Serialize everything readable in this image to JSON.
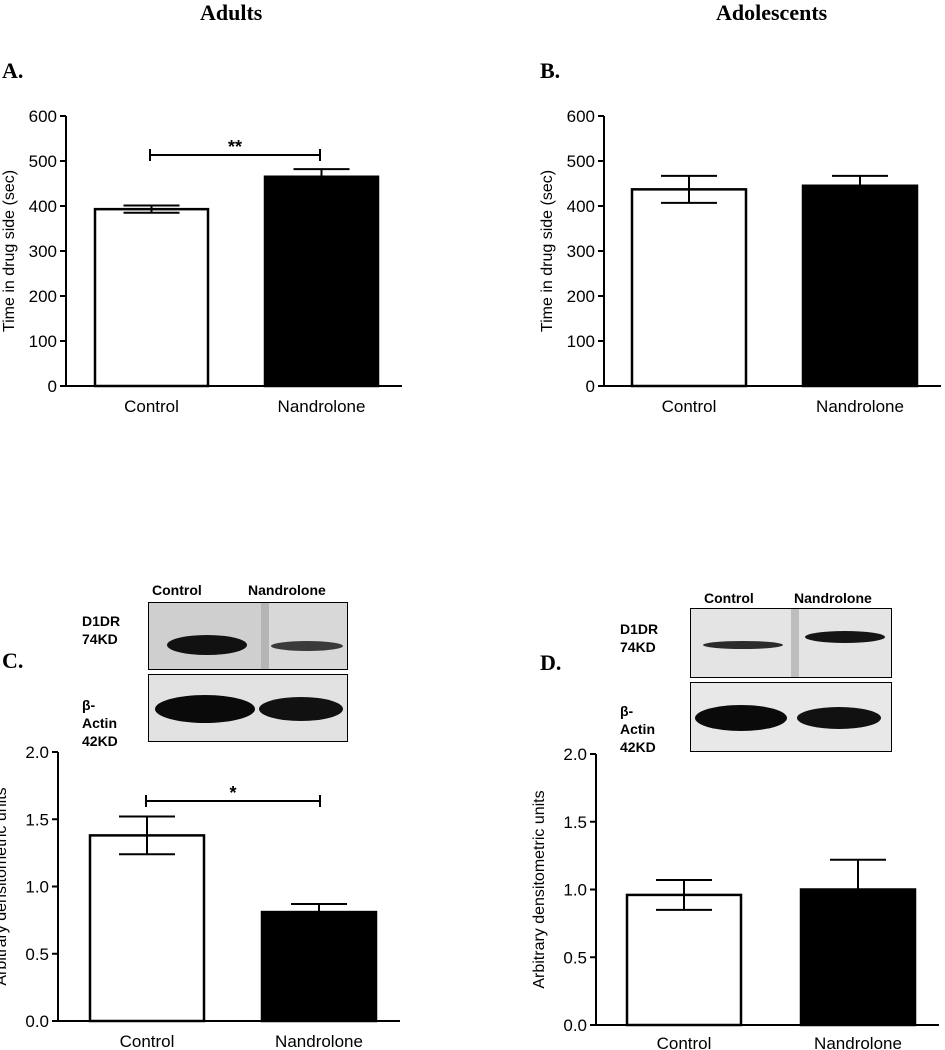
{
  "columns": {
    "left": "Adults",
    "right": "Adolescents"
  },
  "panels": [
    {
      "letter": "A.",
      "ylabel": "Time in drug side (sec)",
      "yticks": [
        "0",
        "100",
        "200",
        "300",
        "400",
        "500",
        "600"
      ]
    },
    {
      "letter": "B.",
      "ylabel": "Time in drug side (sec)",
      "yticks": [
        "0",
        "100",
        "200",
        "300",
        "400",
        "500",
        "600"
      ]
    },
    {
      "letter": "C.",
      "ylabel": "Arbitrary densitometric units",
      "yticks": [
        "0.0",
        "0.5",
        "1.0",
        "1.5",
        "2.0"
      ]
    },
    {
      "letter": "D.",
      "ylabel": "Arbitrary densitometric units",
      "yticks": [
        "0.0",
        "0.5",
        "1.0",
        "1.5",
        "2.0"
      ]
    }
  ],
  "chart_data": [
    {
      "type": "bar",
      "categories": [
        "Control",
        "Nandrolone"
      ],
      "values": [
        393,
        465
      ],
      "errors": [
        8,
        17
      ],
      "colors": [
        "#ffffff",
        "#000000"
      ],
      "ylabel": "Time in drug side (sec)",
      "ylim": [
        0,
        600
      ],
      "annotation": "**",
      "grid": false
    },
    {
      "type": "bar",
      "categories": [
        "Control",
        "Nandrolone"
      ],
      "values": [
        437,
        445
      ],
      "errors": [
        30,
        22
      ],
      "colors": [
        "#ffffff",
        "#000000"
      ],
      "ylabel": "Time in drug side (sec)",
      "ylim": [
        0,
        600
      ],
      "annotation": "",
      "grid": false
    },
    {
      "type": "bar",
      "categories": [
        "Control",
        "Nandrolone"
      ],
      "values": [
        1.38,
        0.81
      ],
      "errors": [
        0.14,
        0.06
      ],
      "colors": [
        "#ffffff",
        "#000000"
      ],
      "ylabel": "Arbitrary densitometric units",
      "ylim": [
        0,
        2.0
      ],
      "annotation": "*",
      "grid": false
    },
    {
      "type": "bar",
      "categories": [
        "Control",
        "Nandrolone"
      ],
      "values": [
        0.96,
        1.0
      ],
      "errors": [
        0.11,
        0.22
      ],
      "colors": [
        "#ffffff",
        "#000000"
      ],
      "ylabel": "Arbitrary densitometric units",
      "ylim": [
        0,
        2.0
      ],
      "annotation": "",
      "grid": false
    }
  ],
  "blots": [
    {
      "lanes": [
        "Control",
        "Nandrolone"
      ],
      "protein1": "D1DR",
      "kd1": "74KD",
      "protein2": "β-Actin",
      "kd2": "42KD"
    },
    {
      "lanes": [
        "Control",
        "Nandrolone"
      ],
      "protein1": "D1DR",
      "kd1": "74KD",
      "protein2": "β-Actin",
      "kd2": "42KD"
    }
  ]
}
